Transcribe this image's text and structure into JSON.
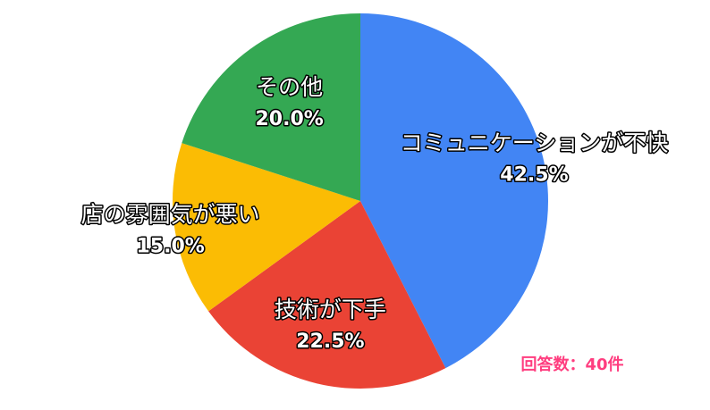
{
  "chart_data": {
    "type": "pie",
    "categories": [
      "コミュニケーションが不快",
      "技術が下手",
      "店の雰囲気が悪い",
      "その他"
    ],
    "values": [
      42.5,
      22.5,
      15.0,
      20.0
    ],
    "value_labels": [
      "42.5%",
      "22.5%",
      "15.0%",
      "20.0%"
    ],
    "colors": [
      "#4285f4",
      "#ea4335",
      "#fbbc04",
      "#34a853"
    ],
    "annotation": "回答数：40件"
  }
}
